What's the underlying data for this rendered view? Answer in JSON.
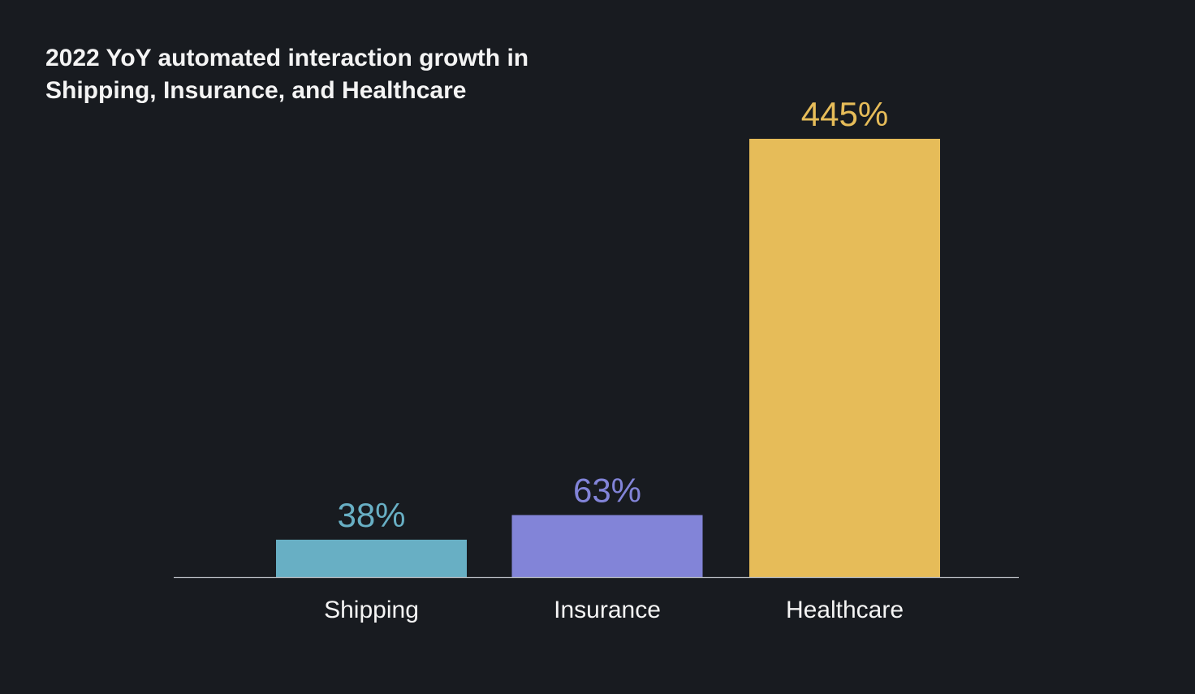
{
  "title": {
    "line1": "2022 YoY automated interaction growth in",
    "line2": "Shipping, Insurance, and Healthcare"
  },
  "chart_data": {
    "type": "bar",
    "title": "2022 YoY automated interaction growth in Shipping, Insurance, and Healthcare",
    "xlabel": "",
    "ylabel": "",
    "categories": [
      "Shipping",
      "Insurance",
      "Healthcare"
    ],
    "values": [
      38,
      63,
      445
    ],
    "value_labels": [
      "38%",
      "63%",
      "445%"
    ],
    "unit": "%",
    "colors": [
      "#68afc4",
      "#8284d8",
      "#e6bc59"
    ],
    "ylim": [
      0,
      445
    ],
    "grid": false,
    "legend": "none"
  },
  "colors": {
    "background": "#181b20",
    "text": "#f4f4f4",
    "baseline": "#b8bcc2"
  }
}
